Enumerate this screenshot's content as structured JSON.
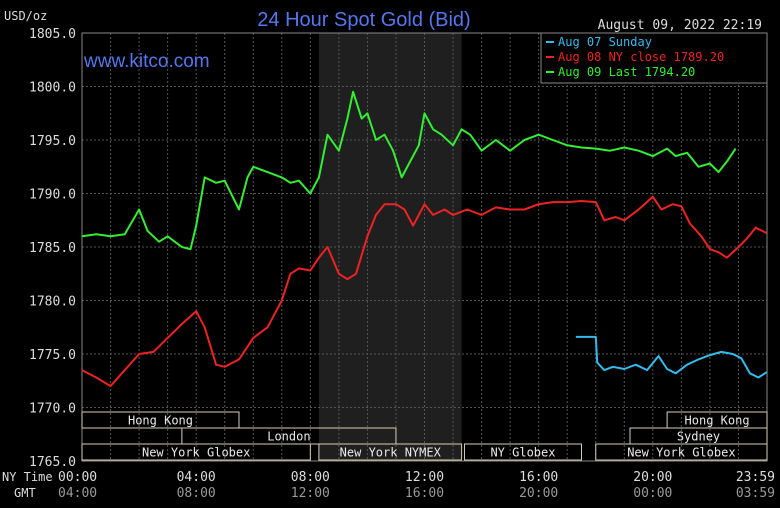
{
  "chart_data": {
    "type": "line",
    "title": "24 Hour Spot Gold (Bid)",
    "ylabel": "USD/oz",
    "timestamp": "August 09, 2022 22:19",
    "watermark": "www.kitco.com",
    "ylim": [
      1765,
      1805
    ],
    "yticks": [
      "1805.0",
      "1800.0",
      "1795.0",
      "1790.0",
      "1785.0",
      "1780.0",
      "1775.0",
      "1770.0",
      "1765.0"
    ],
    "x_range_hours": [
      0,
      24
    ],
    "row_labels": [
      "NY Time",
      "GMT"
    ],
    "xticks_ny": [
      "00:00",
      "04:00",
      "08:00",
      "12:00",
      "16:00",
      "20:00",
      "23:59"
    ],
    "xticks_gmt": [
      "04:00",
      "08:00",
      "12:00",
      "16:00",
      "20:00",
      "00:00",
      "03:59"
    ],
    "highlight_hours": [
      8.3,
      13.3
    ],
    "colors": {
      "series1": "#33bbee",
      "series2": "#ee2222",
      "series3": "#33ee33",
      "title": "#5577ee",
      "watermark": "#5577ee"
    },
    "legend": [
      {
        "text": "Aug 07 Sunday",
        "color": "#33bbee"
      },
      {
        "text": "Aug 08 NY close 1789.20",
        "color": "#ee2222"
      },
      {
        "text": "Aug 09 Last 1794.20",
        "color": "#33ee33"
      }
    ],
    "sessions": [
      {
        "label": "Hong Kong",
        "start": 0,
        "end": 5.5,
        "row": 0
      },
      {
        "label": "Hong Kong",
        "start": 20.5,
        "end": 24,
        "row": 0
      },
      {
        "label": "London",
        "start": 3.5,
        "end": 11,
        "row": 1
      },
      {
        "label": "Sydney",
        "start": 19.2,
        "end": 24,
        "row": 1
      },
      {
        "label": "New York Globex",
        "start": 0,
        "end": 8,
        "row": 2
      },
      {
        "label": "New York NYMEX",
        "start": 8.3,
        "end": 13.3,
        "row": 2
      },
      {
        "label": "NY Globex",
        "start": 13.4,
        "end": 17.5,
        "row": 2
      },
      {
        "label": "New York Globex",
        "start": 18,
        "end": 24,
        "row": 2
      }
    ],
    "series": [
      {
        "name": "Aug 07 Sunday",
        "color": "#33bbee",
        "x": [
          17.3,
          18.0,
          18.05,
          18.3,
          18.6,
          19.0,
          19.4,
          19.8,
          20.2,
          20.5,
          20.8,
          21.2,
          21.6,
          22.0,
          22.4,
          22.8,
          23.1,
          23.4,
          23.7,
          23.99
        ],
        "values": [
          1776.6,
          1776.6,
          1774.2,
          1773.5,
          1773.8,
          1773.6,
          1774.0,
          1773.5,
          1774.8,
          1773.6,
          1773.2,
          1774.0,
          1774.5,
          1774.9,
          1775.2,
          1775.0,
          1774.6,
          1773.2,
          1772.8,
          1773.3
        ]
      },
      {
        "name": "Aug 08 NY close 1789.20",
        "color": "#ee2222",
        "x": [
          0,
          0.5,
          1.0,
          1.5,
          2.0,
          2.5,
          3.0,
          3.5,
          4.0,
          4.3,
          4.7,
          5.0,
          5.5,
          6.0,
          6.5,
          7.0,
          7.3,
          7.6,
          8.0,
          8.3,
          8.6,
          9.0,
          9.3,
          9.6,
          10.0,
          10.3,
          10.6,
          11.0,
          11.3,
          11.6,
          12.0,
          12.3,
          12.7,
          13.0,
          13.5,
          14.0,
          14.5,
          15.0,
          15.5,
          16.0,
          16.5,
          17.0,
          17.5,
          18.0,
          18.3,
          18.7,
          19.0,
          19.5,
          20.0,
          20.3,
          20.7,
          21.0,
          21.3,
          21.7,
          22.0,
          22.3,
          22.6,
          23.0,
          23.3,
          23.6,
          23.99
        ],
        "values": [
          1773.5,
          1772.8,
          1772.0,
          1773.5,
          1775.0,
          1775.2,
          1776.5,
          1777.8,
          1779.0,
          1777.5,
          1774.0,
          1773.8,
          1774.5,
          1776.5,
          1777.5,
          1780.0,
          1782.5,
          1783.0,
          1782.8,
          1784.0,
          1785.0,
          1782.5,
          1782.0,
          1782.5,
          1786.0,
          1788.0,
          1789.0,
          1789.0,
          1788.5,
          1787.0,
          1789.0,
          1788.0,
          1788.5,
          1788.0,
          1788.5,
          1788.0,
          1788.7,
          1788.5,
          1788.5,
          1789.0,
          1789.2,
          1789.2,
          1789.3,
          1789.2,
          1787.5,
          1787.8,
          1787.5,
          1788.5,
          1789.7,
          1788.5,
          1789.0,
          1788.8,
          1787.2,
          1786.0,
          1784.8,
          1784.5,
          1784.0,
          1785.0,
          1785.8,
          1786.8,
          1786.3
        ]
      },
      {
        "name": "Aug 09 Last 1794.20",
        "color": "#33ee33",
        "x": [
          0,
          0.5,
          1.0,
          1.5,
          2.0,
          2.3,
          2.7,
          3.0,
          3.5,
          3.8,
          4.0,
          4.3,
          4.7,
          5.0,
          5.5,
          5.8,
          6.0,
          6.5,
          7.0,
          7.3,
          7.6,
          8.0,
          8.3,
          8.6,
          9.0,
          9.3,
          9.5,
          9.8,
          10.0,
          10.3,
          10.6,
          10.9,
          11.2,
          11.5,
          11.8,
          12.0,
          12.3,
          12.6,
          13.0,
          13.3,
          13.6,
          14.0,
          14.5,
          15.0,
          15.5,
          16.0,
          16.5,
          17.0,
          17.5,
          18.0,
          18.5,
          19.0,
          19.5,
          20.0,
          20.5,
          20.8,
          21.2,
          21.6,
          22.0,
          22.3,
          22.6,
          22.9
        ],
        "values": [
          1786.0,
          1786.2,
          1786.0,
          1786.2,
          1788.5,
          1786.5,
          1785.5,
          1786.0,
          1785.0,
          1784.8,
          1787.0,
          1791.5,
          1791.0,
          1791.2,
          1788.5,
          1791.5,
          1792.5,
          1792.0,
          1791.5,
          1791.0,
          1791.2,
          1790.0,
          1791.5,
          1795.5,
          1794.0,
          1797.0,
          1799.5,
          1797.0,
          1797.5,
          1795.0,
          1795.5,
          1794.0,
          1791.5,
          1793.0,
          1794.5,
          1797.5,
          1796.0,
          1795.5,
          1794.5,
          1796.0,
          1795.5,
          1794.0,
          1795.0,
          1794.0,
          1795.0,
          1795.5,
          1795.0,
          1794.5,
          1794.3,
          1794.2,
          1794.0,
          1794.3,
          1794.0,
          1793.5,
          1794.2,
          1793.5,
          1793.8,
          1792.5,
          1792.8,
          1792.0,
          1793.0,
          1794.2
        ]
      }
    ]
  }
}
